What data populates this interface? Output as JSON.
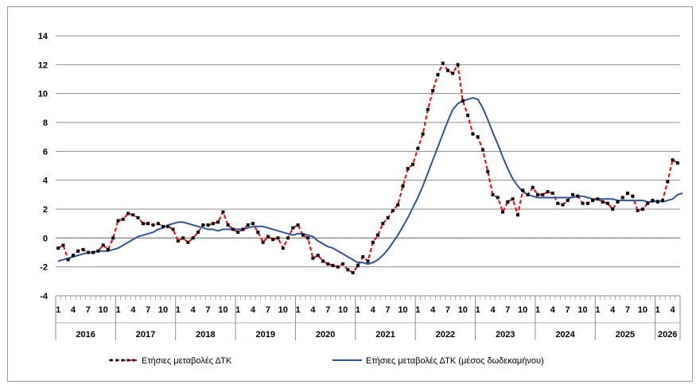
{
  "chart_data": {
    "type": "line",
    "title": "",
    "xlabel": "",
    "ylabel": "",
    "ylim": [
      -4,
      14
    ],
    "y_ticks": [
      "14",
      "12",
      "10",
      "8",
      "6",
      "4",
      "2",
      "0",
      "-2",
      "-4"
    ],
    "grid": "horizontal",
    "legend_position": "bottom",
    "start_month": "2016-01",
    "month_tick_labels": [
      "1",
      "4",
      "7",
      "10"
    ],
    "years": [
      "2016",
      "2017",
      "2018",
      "2019",
      "2020",
      "2021",
      "2022",
      "2023",
      "2024",
      "2025",
      "2026"
    ],
    "series": [
      {
        "name": "Ετήσιες μεταβολές ΔΤΚ",
        "color": "#ff0000",
        "style": "dashed-markers",
        "values": [
          -0.7,
          -0.5,
          -1.5,
          -1.2,
          -0.9,
          -0.8,
          -1.0,
          -1.0,
          -0.9,
          -0.5,
          -0.8,
          0.0,
          1.2,
          1.3,
          1.7,
          1.6,
          1.4,
          1.0,
          1.0,
          0.9,
          1.0,
          0.8,
          0.8,
          0.6,
          -0.2,
          0.0,
          -0.3,
          0.0,
          0.4,
          0.9,
          0.9,
          1.0,
          1.1,
          1.8,
          0.9,
          0.6,
          0.4,
          0.6,
          0.9,
          1.0,
          0.4,
          -0.3,
          0.1,
          -0.1,
          0.0,
          -0.7,
          0.0,
          0.7,
          0.9,
          0.2,
          0.0,
          -1.4,
          -1.2,
          -1.6,
          -1.8,
          -1.9,
          -2.0,
          -1.8,
          -2.2,
          -2.4,
          -1.9,
          -1.3,
          -1.6,
          -0.3,
          0.2,
          1.0,
          1.4,
          1.9,
          2.3,
          3.6,
          4.8,
          5.1,
          6.2,
          7.2,
          8.9,
          10.2,
          11.3,
          12.1,
          11.6,
          11.4,
          12.0,
          9.5,
          8.5,
          7.2,
          7.0,
          6.1,
          4.6,
          3.0,
          2.8,
          1.8,
          2.5,
          2.7,
          1.6,
          3.3,
          3.0,
          3.5,
          3.0,
          3.0,
          3.2,
          3.1,
          2.4,
          2.3,
          2.6,
          3.0,
          2.9,
          2.4,
          2.4,
          2.6,
          2.7,
          2.5,
          2.4,
          2.0,
          2.5,
          2.8,
          3.1,
          2.9,
          1.9,
          2.0,
          2.4,
          2.6,
          2.5,
          2.6,
          3.9,
          5.4,
          5.2
        ]
      },
      {
        "name": "Ετήσιες μεταβολές ΔΤΚ (μέσος δωδεκαμήνου)",
        "color": "#2f5597",
        "style": "solid",
        "values": [
          -1.6,
          -1.5,
          -1.4,
          -1.3,
          -1.2,
          -1.1,
          -1.0,
          -1.0,
          -0.9,
          -0.9,
          -0.9,
          -0.8,
          -0.7,
          -0.5,
          -0.3,
          -0.1,
          0.1,
          0.2,
          0.3,
          0.4,
          0.6,
          0.7,
          0.9,
          1.0,
          1.1,
          1.1,
          1.0,
          0.9,
          0.8,
          0.7,
          0.6,
          0.6,
          0.5,
          0.6,
          0.6,
          0.6,
          0.6,
          0.6,
          0.7,
          0.8,
          0.8,
          0.8,
          0.7,
          0.6,
          0.5,
          0.4,
          0.3,
          0.2,
          0.3,
          0.3,
          0.2,
          0.1,
          -0.2,
          -0.4,
          -0.6,
          -0.7,
          -0.9,
          -1.1,
          -1.3,
          -1.5,
          -1.7,
          -1.7,
          -1.8,
          -1.7,
          -1.5,
          -1.2,
          -0.8,
          -0.3,
          0.2,
          0.8,
          1.4,
          2.1,
          2.8,
          3.6,
          4.5,
          5.4,
          6.3,
          7.2,
          8.1,
          8.9,
          9.3,
          9.5,
          9.6,
          9.7,
          9.6,
          9.0,
          8.2,
          7.3,
          6.5,
          5.6,
          4.8,
          4.1,
          3.6,
          3.2,
          3.0,
          2.9,
          2.8,
          2.8,
          2.8,
          2.8,
          2.8,
          2.8,
          2.8,
          2.8,
          2.9,
          2.9,
          2.8,
          2.7,
          2.7,
          2.7,
          2.7,
          2.7,
          2.6,
          2.6,
          2.6,
          2.6,
          2.6,
          2.6,
          2.5,
          2.5,
          2.6,
          2.5,
          2.6,
          2.7,
          3.0,
          3.1
        ]
      }
    ]
  }
}
